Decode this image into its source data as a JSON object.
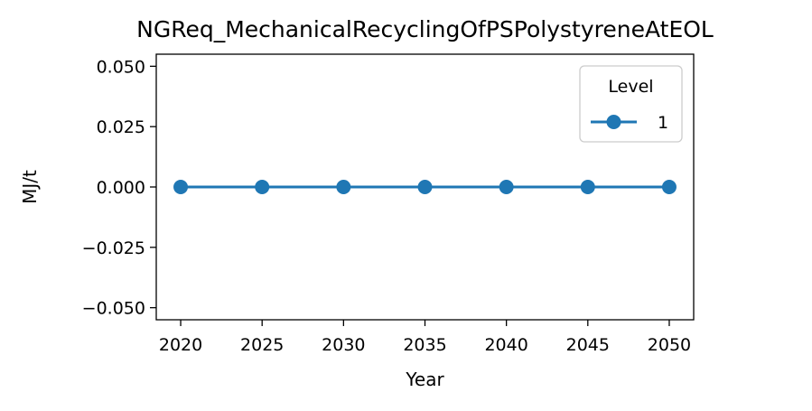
{
  "chart_data": {
    "type": "line",
    "title": "NGReq_MechanicalRecyclingOfPSPolystyreneAtEOL",
    "xlabel": "Year",
    "ylabel": "MJ/t",
    "x": [
      2020,
      2025,
      2030,
      2035,
      2040,
      2045,
      2050
    ],
    "series": [
      {
        "name": "1",
        "values": [
          0,
          0,
          0,
          0,
          0,
          0,
          0
        ],
        "color": "#1f77b4",
        "marker": "circle"
      }
    ],
    "xticks": [
      "2020",
      "2025",
      "2030",
      "2035",
      "2040",
      "2045",
      "2050"
    ],
    "yticks": [
      "0.050",
      "0.025",
      "0.000",
      "−0.025",
      "−0.050"
    ],
    "xlim": [
      2018.5,
      2051.5
    ],
    "ylim": [
      -0.055,
      0.055
    ],
    "legend": {
      "title": "Level",
      "placement": "top-right"
    },
    "grid": false
  }
}
